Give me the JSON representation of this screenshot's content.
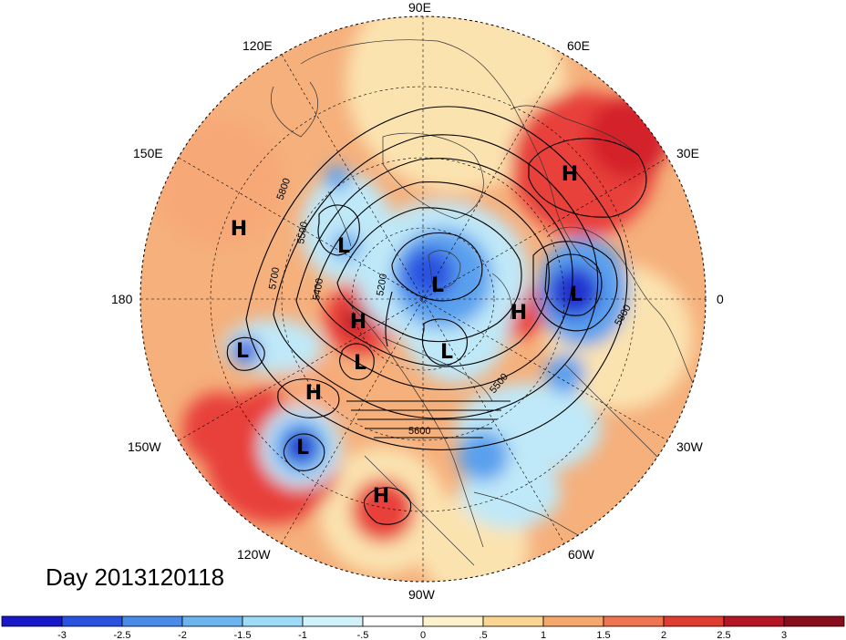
{
  "title": "Day 2013120118",
  "longitude_labels": [
    "90E",
    "60E",
    "30E",
    "0",
    "30W",
    "60W",
    "90W",
    "120W",
    "150W",
    "180",
    "150E",
    "120E"
  ],
  "pressure_centers": [
    {
      "type": "H",
      "name": "central-asia-high"
    },
    {
      "type": "H",
      "name": "west-pacific-high"
    },
    {
      "type": "L",
      "name": "bering-low"
    },
    {
      "type": "L",
      "name": "polar-low"
    },
    {
      "type": "L",
      "name": "scandinavia-low"
    },
    {
      "type": "H",
      "name": "greenland-high"
    },
    {
      "type": "H",
      "name": "alaska-high"
    },
    {
      "type": "L",
      "name": "canada-low"
    },
    {
      "type": "L",
      "name": "hudson-low"
    },
    {
      "type": "L",
      "name": "alaska-gulf-low"
    },
    {
      "type": "H",
      "name": "pacific-high"
    },
    {
      "type": "L",
      "name": "hawaii-low"
    },
    {
      "type": "H",
      "name": "mexico-high"
    }
  ],
  "contour_labels": [
    "5800",
    "5500",
    "5700",
    "5400",
    "5200",
    "5600",
    "5500",
    "5800"
  ],
  "colorbar": {
    "tick_labels": [
      "-3",
      "-2.5",
      "-2",
      "-1.5",
      "-1",
      "-.5",
      "0",
      ".5",
      "1",
      "1.5",
      "2",
      "2.5",
      "3"
    ],
    "colors": [
      "#1818c8",
      "#2a52e0",
      "#4a8ae8",
      "#6cb4f0",
      "#9cdcf6",
      "#d2f2fa",
      "#ffffff",
      "#fef2cc",
      "#fbd692",
      "#f6a86c",
      "#ef7450",
      "#e03c30",
      "#b41424",
      "#880c1c"
    ]
  },
  "anomaly_colors": {
    "neg_strong": "#2233d0",
    "neg_mid": "#5aa0ee",
    "neg_light": "#bfe8f8",
    "pos_light": "#fbe3b0",
    "pos_mid": "#f7a877",
    "pos_strong": "#e8413a"
  }
}
